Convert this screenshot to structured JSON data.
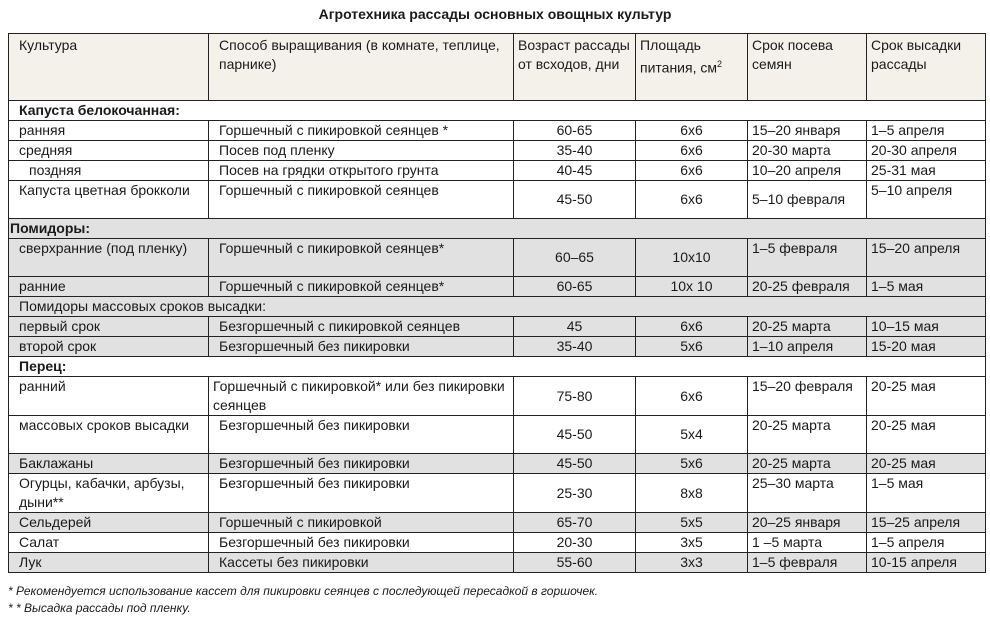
{
  "title": "Агротехника рассады основных овощных культур",
  "headers": [
    "Культура",
    "Способ выращивания (в комнате, теплице, парнике)",
    "Возраст рассады от всходов, дни",
    "Площадь питания, см",
    "Срок посева семян",
    "Срок высадки рассады"
  ],
  "header_sup": "2",
  "sections": {
    "cabbage": "Капуста белокочанная:",
    "tomatoes": "Помидоры:",
    "tomatoes_mass": "Помидоры массовых сроков высадки:",
    "pepper": "Перец:"
  },
  "rows": [
    [
      "ранняя",
      "Горшечный с пикировкой сеянцев *",
      "60-65",
      "6х6",
      "15–20 января",
      "1–5 апреля"
    ],
    [
      "средняя",
      "Посев под пленку",
      "35-40",
      "6х6",
      "20-30 марта",
      "20-30 апреля"
    ],
    [
      "поздняя",
      "Посев на грядки открытого грунта",
      "40-45",
      "6х6",
      "10–20 апреля",
      "25-31 мая"
    ],
    [
      "Капуста цветная брокколи",
      "Горшечный с пикировкой сеянцев",
      "45-50",
      "6х6",
      "5–10 февраля",
      "5–10 апреля"
    ],
    [
      "сверхранние (под пленку)",
      "Горшечный с пикировкой сеянцев*",
      "60–65",
      "10х10",
      "1–5 февраля",
      "15–20 апреля"
    ],
    [
      "ранние",
      "Горшечный с пикировкой сеянцев*",
      "60-65",
      "10х 10",
      "20-25 февраля",
      "1–5 мая"
    ],
    [
      "первый срок",
      "Безгоршечный с пикировкой сеянцев",
      "45",
      "6х6",
      "20-25 марта",
      "10–15 мая"
    ],
    [
      "второй срок",
      "Безгоршечный без пикировки",
      "35-40",
      "5х6",
      "1–10 апреля",
      "15-20 мая"
    ],
    [
      "ранний",
      "Горшечный с пикировкой* или без пикировки сеянцев",
      "75-80",
      "6х6",
      "15–20 февраля",
      "20-25 мая"
    ],
    [
      "массовых сроков высадки",
      "Безгоршечный без пикировки",
      "45-50",
      "5х4",
      "20-25 марта",
      "20-25 мая"
    ],
    [
      "Баклажаны",
      "Безгоршечный без пикировки",
      "45-50",
      "5х6",
      "20-25 марта",
      "20-25 мая"
    ],
    [
      "Огурцы, кабачки, арбузы, дыни**",
      "Безгоршечный без пикировки",
      "25-30",
      "8х8",
      "25–30 марта",
      "1–5 мая"
    ],
    [
      "Сельдерей",
      "Горшечный с пикировкой",
      "65-70",
      "5х5",
      "20–25 января",
      "15–25 апреля"
    ],
    [
      "Салат",
      "Безгоршечный без пикировки",
      "20-30",
      "3х5",
      "1 –5 марта",
      "1–5 апреля"
    ],
    [
      "Лук",
      "Кассеты без пикировки",
      "55-60",
      "3х3",
      "1–5 февраля",
      "10-15 апреля"
    ]
  ],
  "footnotes": [
    "* Рекомендуется использование кассет для пикировки сеянцев с последующей пересадкой в горшочек.",
    "* * Высадка рассады под пленку."
  ]
}
